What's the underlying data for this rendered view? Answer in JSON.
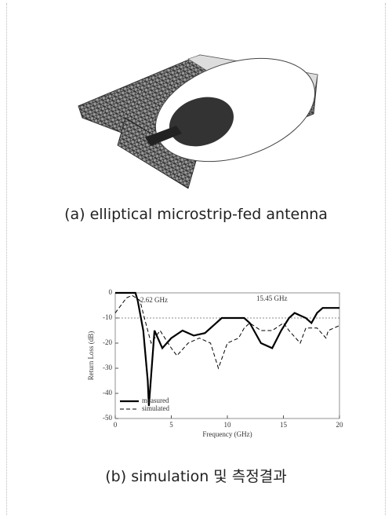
{
  "figure_a": {
    "caption": "(a) elliptical microstrip-fed antenna"
  },
  "figure_b": {
    "caption": "(b) simulation 및 측정결과"
  },
  "chart_data": {
    "type": "line",
    "x_label": "Frequency (GHz)",
    "y_label": "Return Loss (dB)",
    "xlim": [
      0,
      20
    ],
    "xticks": [
      0,
      5,
      10,
      15,
      20
    ],
    "ylim": [
      -50,
      0
    ],
    "yticks": [
      0,
      -10,
      -20,
      -30,
      -40,
      -50
    ],
    "hline": -10,
    "annotations": [
      "2.62 GHz",
      "15.45 GHz"
    ],
    "legend": "lower left",
    "series": [
      {
        "name": "measured",
        "color": "#000000",
        "style": "solid",
        "x": [
          0,
          1.8,
          2.0,
          2.5,
          2.9,
          3.0,
          3.5,
          4.2,
          5,
          6,
          7,
          8,
          9,
          9.5,
          10.5,
          11.5,
          12,
          13,
          14,
          14.8,
          15.5,
          16,
          17,
          17.5,
          18,
          18.5,
          20
        ],
        "values": [
          0,
          0,
          -3,
          -15,
          -35,
          -45,
          -15,
          -22,
          -18,
          -15,
          -17,
          -16,
          -12,
          -10,
          -10,
          -10,
          -12,
          -20,
          -22,
          -15,
          -10,
          -8,
          -10,
          -12,
          -8,
          -6,
          -6
        ]
      },
      {
        "name": "simulated",
        "color": "#000000",
        "style": "dashed",
        "x": [
          0,
          1,
          1.5,
          2.2,
          2.6,
          3.2,
          4,
          5,
          5.5,
          6.5,
          7.5,
          8.5,
          9.2,
          10,
          11,
          11.5,
          12,
          13,
          14,
          15,
          15.5,
          16.5,
          17,
          18,
          18.8,
          19,
          20
        ],
        "values": [
          -8,
          -2,
          -1,
          -3,
          -10,
          -20,
          -15,
          -22,
          -25,
          -20,
          -18,
          -20,
          -30,
          -20,
          -18,
          -14,
          -12,
          -15,
          -15,
          -12,
          -15,
          -20,
          -14,
          -14,
          -18,
          -15,
          -13
        ]
      }
    ]
  }
}
